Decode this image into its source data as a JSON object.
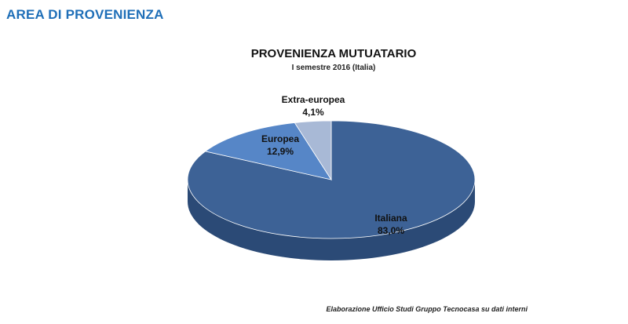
{
  "header": {
    "section_title": "AREA DI PROVENIENZA"
  },
  "footer": {
    "source": "Elaborazione Ufficio Studi Gruppo Tecnocasa su dati interni"
  },
  "chart_data": {
    "type": "pie",
    "title": "PROVENIENZA MUTUATARIO",
    "subtitle": "I semestre 2016 (Italia)",
    "three_d": true,
    "slices": [
      {
        "label": "Italiana",
        "value": 83.0,
        "display": "83,0%",
        "color": "#3d6296",
        "label_color": "#111111"
      },
      {
        "label": "Europea",
        "value": 12.9,
        "display": "12,9%",
        "color": "#5686c7",
        "label_color": "#111111"
      },
      {
        "label": "Extra-europea",
        "value": 4.1,
        "display": "4,1%",
        "color": "#a8b9d6",
        "label_color": "#111111"
      }
    ],
    "colors": {
      "side": "#2b4a76",
      "heading": "#1f6fb8"
    }
  }
}
